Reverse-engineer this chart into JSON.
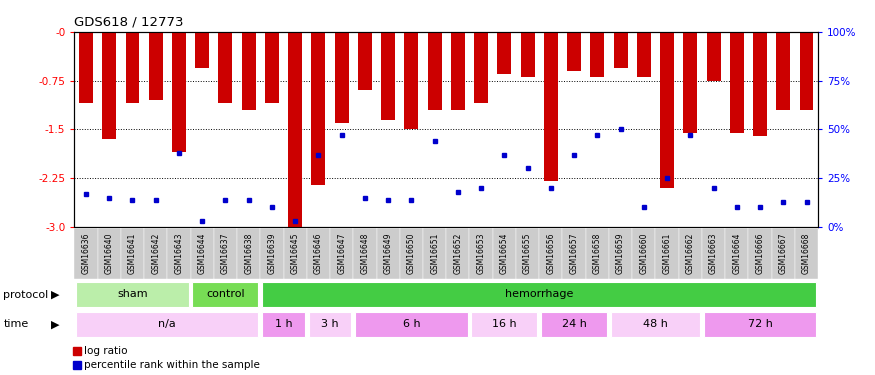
{
  "title": "GDS618 / 12773",
  "samples": [
    "GSM16636",
    "GSM16640",
    "GSM16641",
    "GSM16642",
    "GSM16643",
    "GSM16644",
    "GSM16637",
    "GSM16638",
    "GSM16639",
    "GSM16645",
    "GSM16646",
    "GSM16647",
    "GSM16648",
    "GSM16649",
    "GSM16650",
    "GSM16651",
    "GSM16652",
    "GSM16653",
    "GSM16654",
    "GSM16655",
    "GSM16656",
    "GSM16657",
    "GSM16658",
    "GSM16659",
    "GSM16660",
    "GSM16661",
    "GSM16662",
    "GSM16663",
    "GSM16664",
    "GSM16666",
    "GSM16667",
    "GSM16668"
  ],
  "log_ratio": [
    -1.1,
    -1.65,
    -1.1,
    -1.05,
    -1.85,
    -0.55,
    -1.1,
    -1.2,
    -1.1,
    -3.0,
    -2.35,
    -1.4,
    -0.9,
    -1.35,
    -1.5,
    -1.2,
    -1.2,
    -1.1,
    -0.65,
    -0.7,
    -2.3,
    -0.6,
    -0.7,
    -0.55,
    -0.7,
    -2.4,
    -1.55,
    -0.75,
    -1.55,
    -1.6,
    -1.2,
    -1.2
  ],
  "percentile": [
    0.17,
    0.15,
    0.14,
    0.14,
    0.38,
    0.03,
    0.14,
    0.14,
    0.1,
    0.03,
    0.37,
    0.47,
    0.15,
    0.14,
    0.14,
    0.44,
    0.18,
    0.2,
    0.37,
    0.3,
    0.2,
    0.37,
    0.47,
    0.5,
    0.1,
    0.25,
    0.47,
    0.2,
    0.1,
    0.1,
    0.13,
    0.13
  ],
  "bar_color": "#cc0000",
  "blue_color": "#0000cc",
  "yticks_left": [
    0,
    -0.75,
    -1.5,
    -2.25,
    -3.0
  ],
  "yticks_right": [
    0,
    25,
    50,
    75,
    100
  ],
  "ylim_left": [
    -3.0,
    0.0
  ],
  "protocol_groups": [
    {
      "label": "sham",
      "start": 0,
      "end": 5,
      "color": "#bbeeaa"
    },
    {
      "label": "control",
      "start": 5,
      "end": 8,
      "color": "#77dd55"
    },
    {
      "label": "hemorrhage",
      "start": 8,
      "end": 32,
      "color": "#44cc44"
    }
  ],
  "time_groups": [
    {
      "label": "n/a",
      "start": 0,
      "end": 8,
      "color": "#f8d0f8"
    },
    {
      "label": "1 h",
      "start": 8,
      "end": 10,
      "color": "#ee99ee"
    },
    {
      "label": "3 h",
      "start": 10,
      "end": 12,
      "color": "#f8d0f8"
    },
    {
      "label": "6 h",
      "start": 12,
      "end": 17,
      "color": "#ee99ee"
    },
    {
      "label": "16 h",
      "start": 17,
      "end": 20,
      "color": "#f8d0f8"
    },
    {
      "label": "24 h",
      "start": 20,
      "end": 23,
      "color": "#ee99ee"
    },
    {
      "label": "48 h",
      "start": 23,
      "end": 27,
      "color": "#f8d0f8"
    },
    {
      "label": "72 h",
      "start": 27,
      "end": 32,
      "color": "#ee99ee"
    }
  ],
  "legend_log_ratio": "log ratio",
  "legend_percentile": "percentile rank within the sample",
  "bg": "#ffffff",
  "label_bg": "#cccccc",
  "bar_width": 0.6
}
